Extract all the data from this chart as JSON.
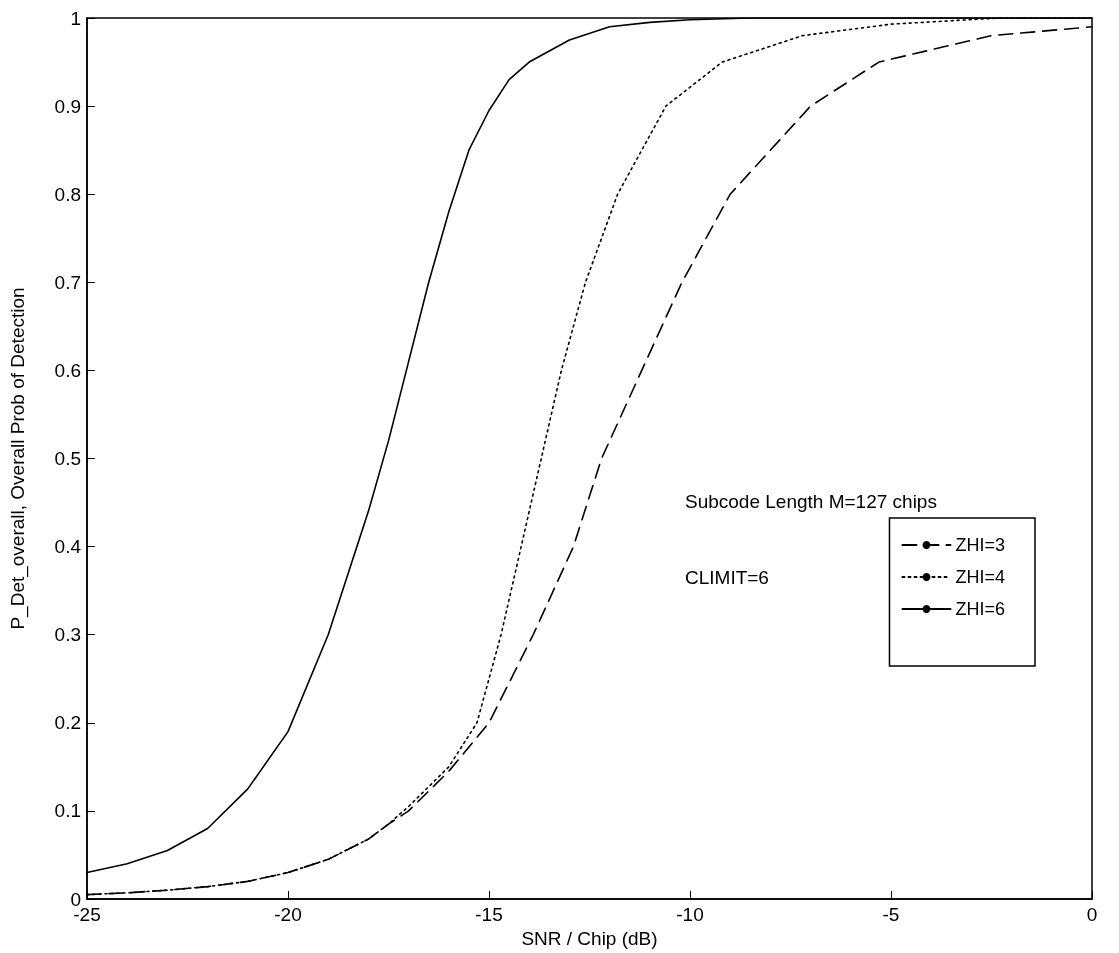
{
  "chart_data": {
    "type": "line",
    "xlabel": "SNR / Chip (dB)",
    "ylabel": "P_Det_overall, Overall Prob of Detection",
    "xlim": [
      -25,
      0
    ],
    "xticks": [
      -25,
      -20,
      -15,
      -10,
      -5,
      0
    ],
    "ylim": [
      0,
      1
    ],
    "yticks": [
      0,
      0.1,
      0.2,
      0.3,
      0.4,
      0.5,
      0.6,
      0.7,
      0.8,
      0.9,
      1
    ],
    "grid": false,
    "legend": "right",
    "marker": "none",
    "annotations": [
      "Subcode Length M=127 chips",
      "CLIMIT=6"
    ],
    "series": [
      {
        "name": "ZHI=3",
        "color": "#000000",
        "line_style": "dashed",
        "x": [
          -25,
          -24,
          -23,
          -22,
          -21,
          -20,
          -19,
          -18,
          -17.5,
          -17,
          -16,
          -15,
          -13.9,
          -12.9,
          -12.2,
          -11.2,
          -10.2,
          -9,
          -7,
          -5.3,
          -2.5,
          0
        ],
        "values": [
          0.005,
          0.007,
          0.01,
          0.014,
          0.02,
          0.03,
          0.045,
          0.068,
          0.085,
          0.1,
          0.145,
          0.2,
          0.3,
          0.4,
          0.5,
          0.6,
          0.7,
          0.8,
          0.9,
          0.95,
          0.98,
          0.99
        ]
      },
      {
        "name": "ZHI=4",
        "color": "#000000",
        "line_style": "dotted",
        "x": [
          -25,
          -24,
          -23,
          -22,
          -21,
          -20,
          -19,
          -18,
          -17.5,
          -17,
          -16,
          -15.3,
          -14.7,
          -14.2,
          -13.7,
          -13.2,
          -12.6,
          -11.8,
          -10.6,
          -9.2,
          -7.2,
          -5,
          -2.3,
          0
        ],
        "values": [
          0.005,
          0.007,
          0.01,
          0.014,
          0.02,
          0.03,
          0.045,
          0.068,
          0.085,
          0.105,
          0.15,
          0.2,
          0.3,
          0.4,
          0.5,
          0.6,
          0.7,
          0.8,
          0.9,
          0.95,
          0.98,
          0.993,
          1,
          1
        ]
      },
      {
        "name": "ZHI=6",
        "color": "#000000",
        "line_style": "solid",
        "x": [
          -25,
          -24,
          -23,
          -22,
          -21,
          -20,
          -19,
          -18.5,
          -18,
          -17.5,
          -17,
          -16.5,
          -16,
          -15.5,
          -15,
          -14.5,
          -14,
          -13,
          -12,
          -11,
          -10,
          -8.5,
          0
        ],
        "values": [
          0.03,
          0.04,
          0.055,
          0.08,
          0.125,
          0.19,
          0.3,
          0.37,
          0.44,
          0.52,
          0.61,
          0.7,
          0.78,
          0.85,
          0.895,
          0.93,
          0.95,
          0.975,
          0.99,
          0.995,
          0.998,
          1,
          1
        ]
      }
    ]
  }
}
